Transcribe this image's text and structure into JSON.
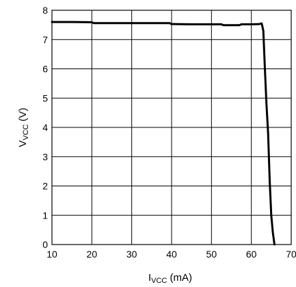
{
  "chart_data": {
    "type": "line",
    "title": "",
    "xlabel_main": "I",
    "xlabel_sub": "VCC",
    "xlabel_unit": " (mA)",
    "ylabel_main": "V",
    "ylabel_sub": "VCC",
    "ylabel_unit": " (V)",
    "xlim": [
      10,
      70
    ],
    "ylim": [
      0,
      8
    ],
    "xticks": [
      10,
      20,
      30,
      40,
      50,
      60,
      70
    ],
    "yticks": [
      0,
      1,
      2,
      3,
      4,
      5,
      6,
      7,
      8
    ],
    "grid": true,
    "series": [
      {
        "x": [
          10,
          15,
          20,
          20.5,
          25,
          30,
          35,
          39.5,
          40,
          45,
          50,
          52.5,
          53,
          57,
          57.5,
          60,
          62,
          62.6,
          63.0,
          63.4,
          63.8,
          64.2,
          64.6,
          65.0,
          65.4,
          65.8
        ],
        "values": [
          7.6,
          7.6,
          7.59,
          7.56,
          7.56,
          7.56,
          7.56,
          7.56,
          7.53,
          7.52,
          7.52,
          7.52,
          7.49,
          7.49,
          7.52,
          7.52,
          7.53,
          7.55,
          7.3,
          6.0,
          4.8,
          3.8,
          2.2,
          1.0,
          0.4,
          0.0
        ]
      }
    ]
  }
}
